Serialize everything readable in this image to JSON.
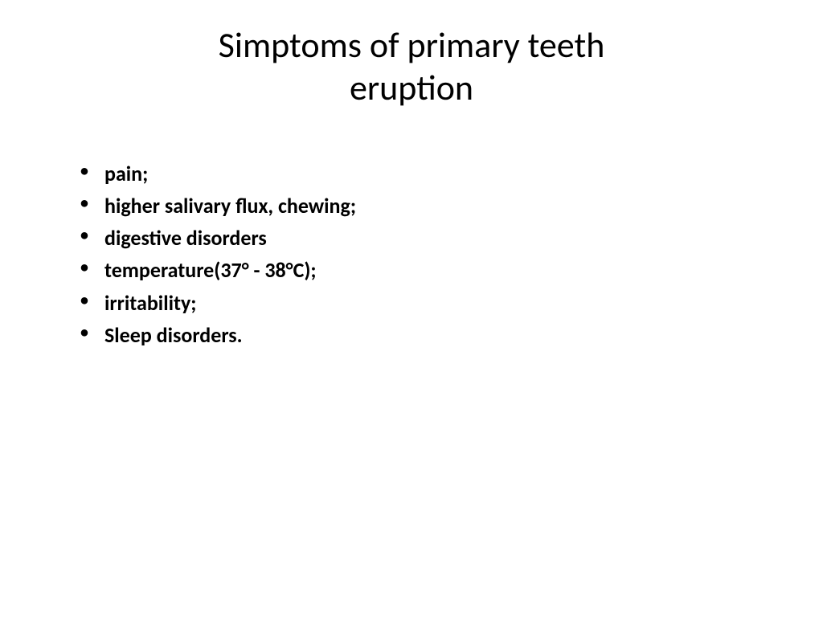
{
  "slide": {
    "title": "Simptoms of primary teeth eruption",
    "title_fontsize": 44,
    "title_fontweight": 400,
    "title_color": "#000000",
    "bullets": [
      "pain;",
      "higher salivary flux, chewing;",
      "digestive disorders",
      "temperature(37° -  38°С);",
      "irritability;",
      "Sleep disorders."
    ],
    "bullet_fontsize": 26,
    "bullet_fontweight": 700,
    "bullet_color": "#000000",
    "background_color": "#ffffff"
  }
}
